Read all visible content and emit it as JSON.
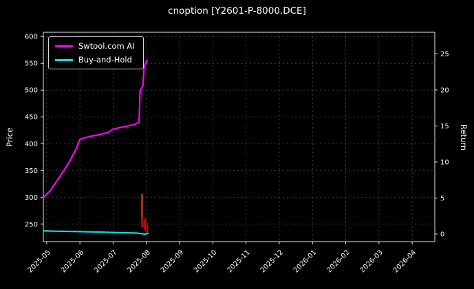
{
  "title": "cnoption [Y2601-P-8000.DCE]",
  "chart_data": {
    "type": "line",
    "title": "cnoption [Y2601-P-8000.DCE]",
    "background_color": "#000000",
    "text_color": "#ffffff",
    "grid_color": "#9a9a9a",
    "grid": true,
    "legend_position": "upper left",
    "left_axis": {
      "label": "Price",
      "ticks": [
        250,
        300,
        350,
        400,
        450,
        500,
        550,
        600
      ],
      "range": [
        217,
        608
      ]
    },
    "right_axis": {
      "label": "Return",
      "ticks": [
        0,
        5,
        10,
        15,
        20,
        25
      ],
      "range": [
        -1.05,
        28.0
      ]
    },
    "x_axis": {
      "tick_labels": [
        "2025-05",
        "2025-06",
        "2025-07",
        "2025-08",
        "2025-09",
        "2025-10",
        "2025-11",
        "2025-12",
        "2026-01",
        "2026-02",
        "2026-03",
        "2026-04"
      ],
      "tick_positions": [
        0,
        1,
        2,
        3,
        4,
        5,
        6,
        7,
        8,
        9,
        10,
        11
      ],
      "range": [
        -0.1,
        11.68
      ]
    },
    "series": [
      {
        "name": "Swtool.com AI",
        "color": "#ff00ff",
        "axis": "left",
        "points": [
          [
            -0.1,
            299
          ],
          [
            0.1,
            312
          ],
          [
            0.3,
            330
          ],
          [
            0.5,
            348
          ],
          [
            0.7,
            368
          ],
          [
            0.9,
            392
          ],
          [
            1.0,
            408
          ],
          [
            1.15,
            411
          ],
          [
            1.35,
            414
          ],
          [
            1.6,
            417
          ],
          [
            1.85,
            421
          ],
          [
            2.0,
            427
          ],
          [
            2.2,
            430
          ],
          [
            2.45,
            433
          ],
          [
            2.65,
            436
          ],
          [
            2.78,
            440
          ],
          [
            2.81,
            498
          ],
          [
            2.86,
            504
          ],
          [
            2.9,
            509
          ],
          [
            2.93,
            542
          ],
          [
            2.97,
            549
          ],
          [
            3.02,
            556
          ]
        ]
      },
      {
        "name": "Buy-and-Hold",
        "color": "#00e0e0",
        "axis": "left",
        "points": [
          [
            -0.1,
            237
          ],
          [
            0.3,
            236.5
          ],
          [
            0.8,
            236
          ],
          [
            1.2,
            235.5
          ],
          [
            1.6,
            235
          ],
          [
            2.0,
            234
          ],
          [
            2.4,
            233.5
          ],
          [
            2.7,
            233
          ],
          [
            2.85,
            232
          ],
          [
            2.95,
            231
          ],
          [
            3.05,
            232.5
          ]
        ]
      }
    ],
    "bars": [
      {
        "x": 2.87,
        "low": 262,
        "high": 306,
        "color": "#cc4400"
      },
      {
        "x": 2.87,
        "low": 244,
        "high": 262,
        "color": "#ee0000"
      },
      {
        "x": 2.96,
        "low": 238,
        "high": 260,
        "color": "#ee0000"
      },
      {
        "x": 3.03,
        "low": 234,
        "high": 252,
        "color": "#cc0000"
      }
    ]
  }
}
